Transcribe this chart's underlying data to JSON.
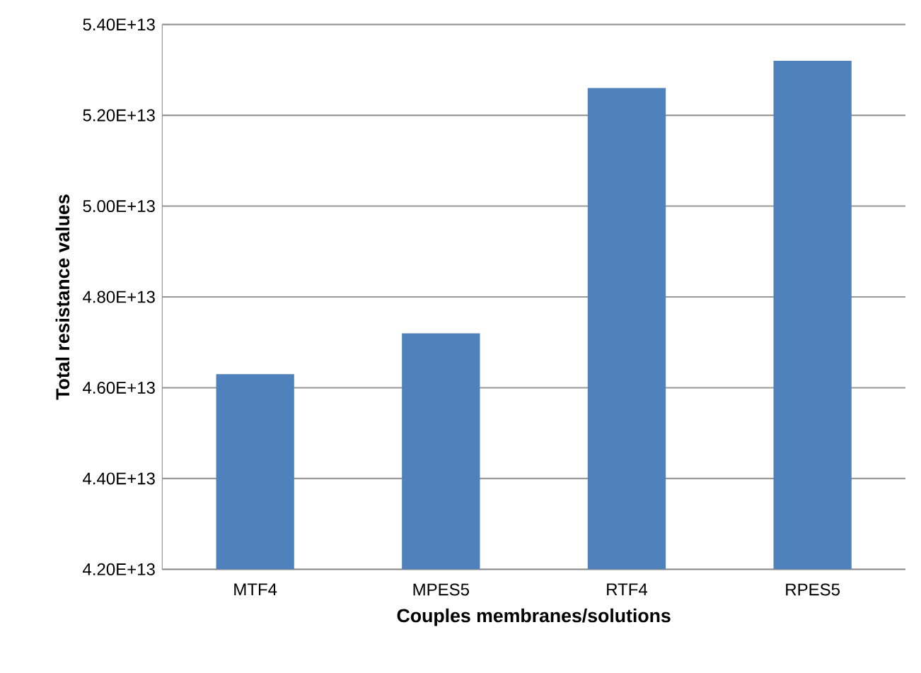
{
  "chart_data": {
    "type": "bar",
    "xlabel": "Couples membranes/solutions",
    "ylabel": "Total resistance values",
    "categories": [
      "MTF4",
      "MPES5",
      "RTF4",
      "RPES5"
    ],
    "values": [
      46300000000000.0,
      47200000000000.0,
      52600000000000.0,
      53200000000000.0
    ],
    "color": "#4f81bd",
    "ylim": [
      42000000000000.0,
      54000000000000.0
    ],
    "yticks": [
      {
        "value": 42000000000000.0,
        "label": "4.20E+13"
      },
      {
        "value": 44000000000000.0,
        "label": "4.40E+13"
      },
      {
        "value": 46000000000000.0,
        "label": "4.60E+13"
      },
      {
        "value": 48000000000000.0,
        "label": "4.80E+13"
      },
      {
        "value": 50000000000000.0,
        "label": "5.00E+13"
      },
      {
        "value": 52000000000000.0,
        "label": "5.20E+13"
      },
      {
        "value": 54000000000000.0,
        "label": "5.40E+13"
      }
    ],
    "grid": "y"
  }
}
